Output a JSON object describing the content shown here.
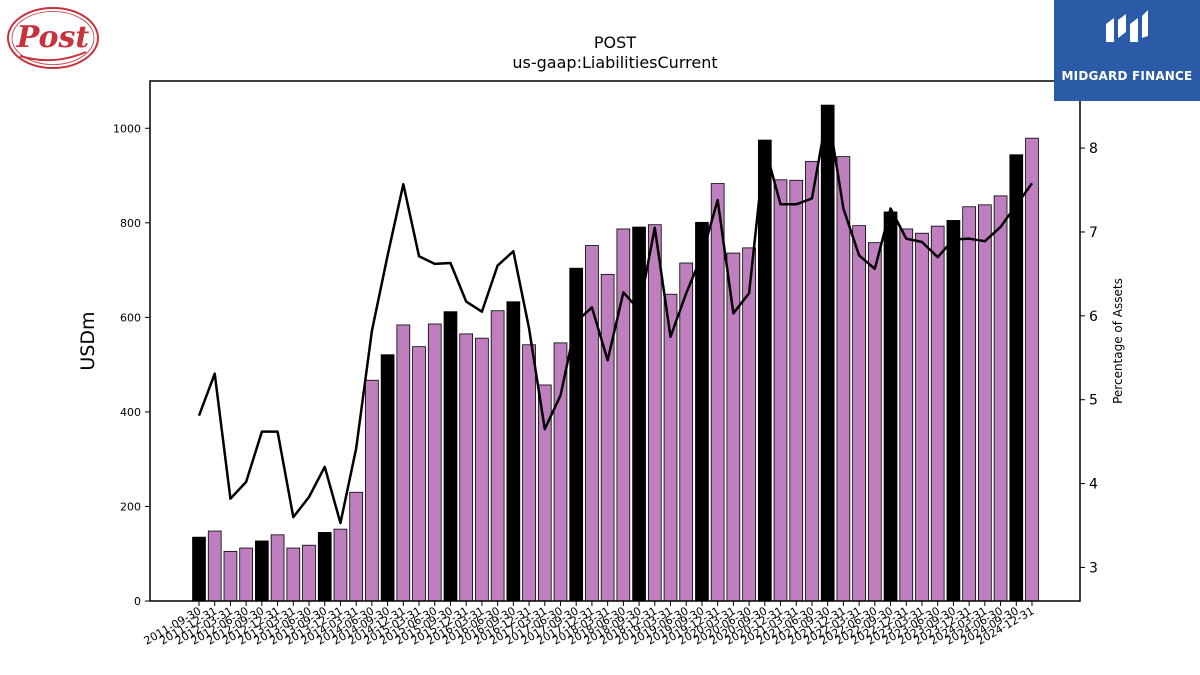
{
  "header": {
    "ticker": "POST",
    "metric": "us-gaap:LiabilitiesCurrent"
  },
  "logos": {
    "left": {
      "text": "Post",
      "color": "#c8323c",
      "icon": "post-holdings-logo"
    },
    "right": {
      "text": "MIDGARD FINANCE",
      "background": "#2b5aa6",
      "icon": "midgard-finance-logo"
    }
  },
  "chart_data": {
    "type": "bar",
    "ylabel": "USDm",
    "y2label": "Percentage of Assets",
    "ylim": [
      0,
      1100
    ],
    "y2lim": [
      2.6,
      8.8
    ],
    "yticks": [
      0,
      200,
      400,
      600,
      800,
      1000
    ],
    "y2ticks": [
      3,
      4,
      5,
      6,
      7,
      8
    ],
    "colors": {
      "bar": "#bf7fbf",
      "bar_highlight": "#000000",
      "line": "#000000"
    },
    "highlight_note": "black bars mark fiscal year-end (Sep 30)",
    "categories": [
      "2011-09-30",
      "2011-12-31",
      "2012-03-31",
      "2012-06-30",
      "2012-09-30",
      "2012-12-31",
      "2013-03-31",
      "2013-06-30",
      "2013-09-30",
      "2013-12-31",
      "2014-03-31",
      "2014-06-30",
      "2014-09-30",
      "2014-12-31",
      "2015-03-31",
      "2015-06-30",
      "2015-09-30",
      "2015-12-31",
      "2016-03-31",
      "2016-06-30",
      "2016-09-30",
      "2016-12-31",
      "2017-03-31",
      "2017-06-30",
      "2017-09-30",
      "2017-12-31",
      "2018-03-31",
      "2018-06-30",
      "2018-09-30",
      "2018-12-31",
      "2019-03-31",
      "2019-06-30",
      "2019-09-30",
      "2019-12-31",
      "2020-03-31",
      "2020-06-30",
      "2020-09-30",
      "2020-12-31",
      "2021-03-31",
      "2021-06-30",
      "2021-09-30",
      "2021-12-31",
      "2022-03-31",
      "2022-06-30",
      "2022-09-30",
      "2022-12-31",
      "2023-03-31",
      "2023-06-30",
      "2023-09-30",
      "2023-12-31",
      "2024-03-31",
      "2024-06-30",
      "2024-09-30",
      "2024-12-31"
    ],
    "series": [
      {
        "kind": "bar",
        "values": [
          135,
          148,
          105,
          112,
          127,
          140,
          112,
          118,
          145,
          152,
          230,
          467,
          521,
          584,
          538,
          586,
          612,
          565,
          556,
          614,
          633,
          542,
          457,
          546,
          704,
          752,
          691,
          787,
          791,
          796,
          649,
          715,
          801,
          883,
          736,
          747,
          975,
          891,
          890,
          930,
          1049,
          940,
          794,
          758,
          823,
          787,
          778,
          793,
          805,
          834,
          838,
          857,
          944,
          979
        ]
      },
      {
        "kind": "line",
        "axis": "right",
        "values": [
          4.81,
          5.31,
          3.82,
          4.02,
          4.62,
          4.62,
          3.6,
          3.84,
          4.2,
          3.53,
          4.42,
          5.82,
          6.72,
          7.57,
          6.71,
          6.62,
          6.63,
          6.17,
          6.05,
          6.6,
          6.77,
          5.85,
          4.65,
          5.05,
          5.93,
          6.1,
          5.47,
          6.28,
          6.07,
          7.05,
          5.75,
          6.27,
          6.72,
          7.38,
          6.03,
          6.27,
          8.02,
          7.33,
          7.33,
          7.4,
          8.45,
          7.28,
          6.72,
          6.56,
          7.28,
          6.92,
          6.88,
          6.7,
          6.91,
          6.92,
          6.89,
          7.06,
          7.32,
          7.58
        ]
      }
    ]
  }
}
